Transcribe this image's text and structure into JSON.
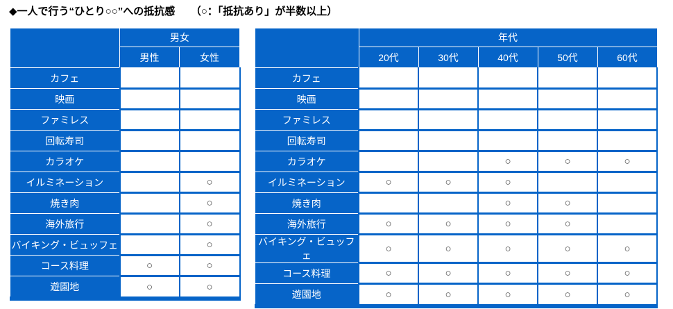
{
  "title": "◆一人で行う“ひとり○○”への抵抗感　　（○：「抵抗あり」が半数以上）",
  "legend_mark": "○",
  "colors": {
    "table_blue": "#0664c8",
    "separator_white": "#ffffff",
    "mark_gray": "#404040",
    "title_black": "#000000"
  },
  "tables": [
    {
      "group_header": "男女",
      "columns": [
        "男性",
        "女性"
      ],
      "rows": [
        {
          "label": "カフェ",
          "marks": [
            "",
            ""
          ]
        },
        {
          "label": "映画",
          "marks": [
            "",
            ""
          ]
        },
        {
          "label": "ファミレス",
          "marks": [
            "",
            ""
          ]
        },
        {
          "label": "回転寿司",
          "marks": [
            "",
            ""
          ]
        },
        {
          "label": "カラオケ",
          "marks": [
            "",
            ""
          ]
        },
        {
          "label": "イルミネーション",
          "marks": [
            "",
            "○"
          ]
        },
        {
          "label": "焼き肉",
          "marks": [
            "",
            "○"
          ]
        },
        {
          "label": "海外旅行",
          "marks": [
            "",
            "○"
          ]
        },
        {
          "label": "バイキング・ビュッフェ",
          "marks": [
            "",
            "○"
          ]
        },
        {
          "label": "コース料理",
          "marks": [
            "○",
            "○"
          ]
        },
        {
          "label": "遊園地",
          "marks": [
            "○",
            "○"
          ]
        }
      ]
    },
    {
      "group_header": "年代",
      "columns": [
        "20代",
        "30代",
        "40代",
        "50代",
        "60代"
      ],
      "rows": [
        {
          "label": "カフェ",
          "marks": [
            "",
            "",
            "",
            "",
            ""
          ]
        },
        {
          "label": "映画",
          "marks": [
            "",
            "",
            "",
            "",
            ""
          ]
        },
        {
          "label": "ファミレス",
          "marks": [
            "",
            "",
            "",
            "",
            ""
          ]
        },
        {
          "label": "回転寿司",
          "marks": [
            "",
            "",
            "",
            "",
            ""
          ]
        },
        {
          "label": "カラオケ",
          "marks": [
            "",
            "",
            "○",
            "○",
            "○"
          ]
        },
        {
          "label": "イルミネーション",
          "marks": [
            "○",
            "○",
            "○",
            "",
            ""
          ]
        },
        {
          "label": "焼き肉",
          "marks": [
            "",
            "",
            "○",
            "○",
            ""
          ]
        },
        {
          "label": "海外旅行",
          "marks": [
            "○",
            "○",
            "○",
            "○",
            ""
          ]
        },
        {
          "label": "バイキング・ビュッフェ",
          "marks": [
            "○",
            "○",
            "○",
            "○",
            "○"
          ]
        },
        {
          "label": "コース料理",
          "marks": [
            "○",
            "○",
            "○",
            "○",
            "○"
          ]
        },
        {
          "label": "遊園地",
          "marks": [
            "○",
            "○",
            "○",
            "○",
            "○"
          ]
        }
      ]
    }
  ],
  "chart_data": [
    {
      "type": "table",
      "title": "一人で行う“ひとり○○”への抵抗感",
      "note": "○：「抵抗あり」が半数以上",
      "group": "男女",
      "columns": [
        "男性",
        "女性"
      ],
      "row_labels": [
        "カフェ",
        "映画",
        "ファミレス",
        "回転寿司",
        "カラオケ",
        "イルミネーション",
        "焼き肉",
        "海外旅行",
        "バイキング・ビュッフェ",
        "コース料理",
        "遊園地"
      ],
      "marks_boolean": [
        [
          false,
          false
        ],
        [
          false,
          false
        ],
        [
          false,
          false
        ],
        [
          false,
          false
        ],
        [
          false,
          false
        ],
        [
          false,
          true
        ],
        [
          false,
          true
        ],
        [
          false,
          true
        ],
        [
          false,
          true
        ],
        [
          true,
          true
        ],
        [
          true,
          true
        ]
      ]
    },
    {
      "type": "table",
      "title": "一人で行う“ひとり○○”への抵抗感",
      "note": "○：「抵抗あり」が半数以上",
      "group": "年代",
      "columns": [
        "20代",
        "30代",
        "40代",
        "50代",
        "60代"
      ],
      "row_labels": [
        "カフェ",
        "映画",
        "ファミレス",
        "回転寿司",
        "カラオケ",
        "イルミネーション",
        "焼き肉",
        "海外旅行",
        "バイキング・ビュッフェ",
        "コース料理",
        "遊園地"
      ],
      "marks_boolean": [
        [
          false,
          false,
          false,
          false,
          false
        ],
        [
          false,
          false,
          false,
          false,
          false
        ],
        [
          false,
          false,
          false,
          false,
          false
        ],
        [
          false,
          false,
          false,
          false,
          false
        ],
        [
          false,
          false,
          true,
          true,
          true
        ],
        [
          true,
          true,
          true,
          false,
          false
        ],
        [
          false,
          false,
          true,
          true,
          false
        ],
        [
          true,
          true,
          true,
          true,
          false
        ],
        [
          true,
          true,
          true,
          true,
          true
        ],
        [
          true,
          true,
          true,
          true,
          true
        ],
        [
          true,
          true,
          true,
          true,
          true
        ]
      ]
    }
  ]
}
